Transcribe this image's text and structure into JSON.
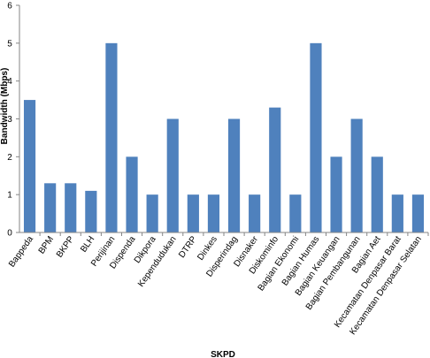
{
  "chart_data": {
    "type": "bar",
    "title": "",
    "xlabel": "SKPD",
    "ylabel": "Bandwidth (Mbps)",
    "ylim": [
      0,
      6
    ],
    "yticks": [
      0,
      1,
      2,
      3,
      4,
      5,
      6
    ],
    "grid": false,
    "legend": "none",
    "bar_color": "#4f81bd",
    "categories": [
      "Bappeda",
      "BPM",
      "BKPP",
      "BLH",
      "Perijinan",
      "Dispenda",
      "Dikpora",
      "Kependudukan",
      "DTRP",
      "Dinkes",
      "Disperindag",
      "Disnaker",
      "Diskominfo",
      "Bagian Ekonomi",
      "Bagian Humas",
      "Bagian Keuangan",
      "Bagian Pembangunan",
      "Bagian Aet",
      "Kecamatan Denpasar Barat",
      "Kecamatan Denpasar Selatan"
    ],
    "values": [
      3.5,
      1.3,
      1.3,
      1.1,
      5,
      2,
      1,
      3,
      1,
      1,
      3,
      1,
      3.3,
      1,
      5,
      2,
      3,
      2,
      1,
      1
    ]
  }
}
